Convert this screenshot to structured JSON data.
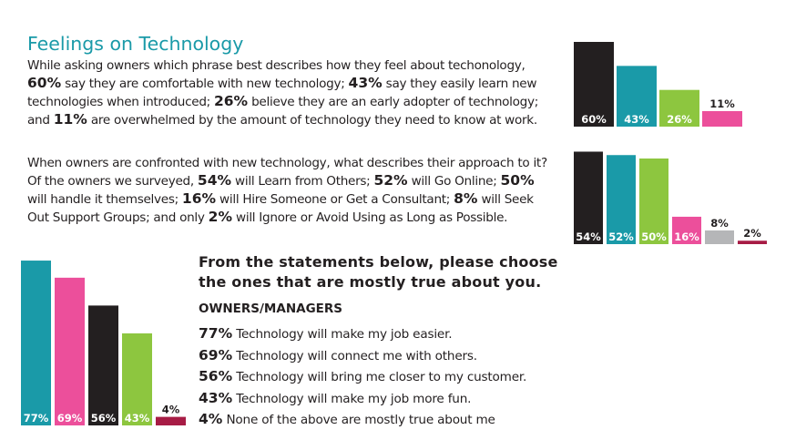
{
  "header": {
    "title": "Feelings on Technology"
  },
  "paragraph1": {
    "lines": [
      [
        {
          "t": "While asking owners which phrase best describes how they feel about techonology,"
        }
      ],
      [
        {
          "t": "60%",
          "b": 1
        },
        {
          "t": " say they are comfortable with new technology; "
        },
        {
          "t": "43%",
          "b": 1
        },
        {
          "t": " say they easily learn new"
        }
      ],
      [
        {
          "t": "technologies when introduced; "
        },
        {
          "t": "26%",
          "b": 1
        },
        {
          "t": " believe they are an early adopter of technology;"
        }
      ],
      [
        {
          "t": "and "
        },
        {
          "t": "11%",
          "b": 1
        },
        {
          "t": " are overwhelmed  by the amount of technology they need to know at work."
        }
      ]
    ]
  },
  "paragraph2": {
    "lines": [
      [
        {
          "t": "When owners are confronted with new technology, what describes their approach to it?"
        }
      ],
      [
        {
          "t": "Of the owners we surveyed, "
        },
        {
          "t": "54%",
          "b": 1
        },
        {
          "t": " will Learn from Others; "
        },
        {
          "t": "52%",
          "b": 1
        },
        {
          "t": " will Go Online; "
        },
        {
          "t": "50%",
          "b": 1
        }
      ],
      [
        {
          "t": "will handle it themselves; "
        },
        {
          "t": "16%",
          "b": 1
        },
        {
          "t": " will Hire Someone or Get a Consultant; "
        },
        {
          "t": "8%",
          "b": 1
        },
        {
          "t": " will Seek"
        }
      ],
      [
        {
          "t": "Out Support Groups; and only  "
        },
        {
          "t": "2%",
          "b": 1
        },
        {
          "t": " will Ignore or Avoid Using as Long as Possible."
        }
      ]
    ]
  },
  "question": {
    "line1": "From the statements below, please choose",
    "line2": "the ones that are mostly true about you.",
    "subhead": "OWNERS/MANAGERS",
    "statements": [
      {
        "pct": "77%",
        "text": " Technology will make my job easier."
      },
      {
        "pct": "69%",
        "text": " Technology will connect me with others."
      },
      {
        "pct": "56%",
        "text": "  Technology will bring me closer to my customer."
      },
      {
        "pct": "43%",
        "text": " Technology will make my job more fun."
      },
      {
        "pct": "4%",
        "text": " None of the above are mostly true about me"
      }
    ]
  },
  "chart_data": [
    {
      "type": "bar",
      "values": [
        60,
        43,
        26,
        11
      ],
      "labels": [
        "60%",
        "43%",
        "26%",
        "11%"
      ],
      "colors": [
        "#231f20",
        "#1a9aa8",
        "#8dc63f",
        "#ec4f9b"
      ],
      "label_colors": [
        "#ffffff",
        "#ffffff",
        "#ffffff",
        "#ffffff"
      ]
    },
    {
      "type": "bar",
      "values": [
        54,
        52,
        50,
        16,
        8,
        2
      ],
      "labels": [
        "54%",
        "52%",
        "50%",
        "16%",
        "8%",
        "2%"
      ],
      "colors": [
        "#231f20",
        "#1a9aa8",
        "#8dc63f",
        "#ec4f9b",
        "#b5b6b8",
        "#a71c45"
      ],
      "label_colors": [
        "#ffffff",
        "#ffffff",
        "#ffffff",
        "#ffffff",
        "#231f20",
        "#231f20"
      ]
    },
    {
      "type": "bar",
      "values": [
        77,
        69,
        56,
        43,
        4
      ],
      "labels": [
        "77%",
        "69%",
        "56%",
        "43%",
        "4%"
      ],
      "colors": [
        "#1a9aa8",
        "#ec4f9b",
        "#231f20",
        "#8dc63f",
        "#a71c45"
      ],
      "label_colors": [
        "#ffffff",
        "#ffffff",
        "#ffffff",
        "#ffffff",
        "#231f20"
      ]
    }
  ]
}
